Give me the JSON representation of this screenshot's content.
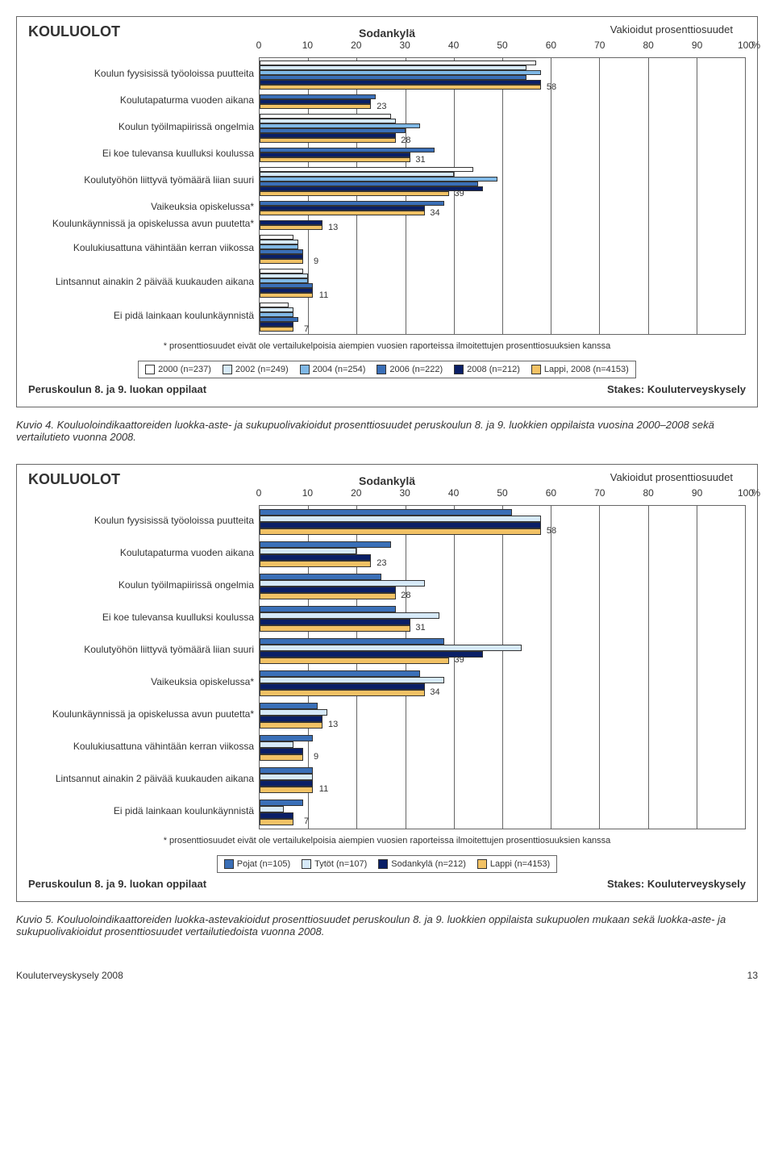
{
  "axis": {
    "ticks": [
      0,
      10,
      20,
      30,
      40,
      50,
      60,
      70,
      80,
      90,
      100
    ],
    "pct_label": "%"
  },
  "chart1": {
    "title": "KOULUOLOT",
    "subtitle_right": "Vakioidut prosenttiosuudet",
    "subtitle_center": "Sodankylä",
    "categories": [
      {
        "label": "Koulun fyysisissä työoloissa puutteita",
        "values": [
          57,
          55,
          58,
          55,
          58,
          58
        ],
        "end_label": "58"
      },
      {
        "label": "Koulutapaturma vuoden aikana",
        "values": [
          null,
          null,
          null,
          24,
          23,
          23
        ],
        "end_label": "23"
      },
      {
        "label": "Koulun työilmapiirissä ongelmia",
        "values": [
          27,
          28,
          33,
          30,
          28,
          28
        ],
        "end_label": "28"
      },
      {
        "label": "Ei koe tulevansa kuulluksi koulussa",
        "values": [
          null,
          null,
          null,
          36,
          31,
          31
        ],
        "end_label": "31"
      },
      {
        "label": "Koulutyöhön liittyvä työmäärä liian suuri",
        "values": [
          44,
          40,
          49,
          45,
          46,
          39
        ],
        "end_label": "39"
      },
      {
        "label": "Vaikeuksia opiskelussa*",
        "values": [
          null,
          null,
          null,
          38,
          34,
          34
        ],
        "end_label": "34"
      },
      {
        "label": "Koulunkäynnissä ja opiskelussa avun puutetta*",
        "values": [
          null,
          null,
          null,
          null,
          13,
          13
        ],
        "end_label": "13"
      },
      {
        "label": "Koulukiusattuna vähintään kerran viikossa",
        "values": [
          7,
          8,
          8,
          9,
          9,
          9
        ],
        "end_label": "9"
      },
      {
        "label": "Lintsannut ainakin 2 päivää kuukauden aikana",
        "values": [
          9,
          10,
          10,
          11,
          11,
          11
        ],
        "end_label": "11"
      },
      {
        "label": "Ei pidä lainkaan koulunkäynnistä",
        "values": [
          6,
          7,
          7,
          8,
          7,
          7
        ],
        "end_label": "7"
      }
    ],
    "series_colors": [
      "#ffffff",
      "#d6e9f8",
      "#7fb8e6",
      "#3a6fb7",
      "#0a1f66",
      "#f2c265"
    ],
    "legend": [
      {
        "label": "2000 (n=237)",
        "color": "#ffffff"
      },
      {
        "label": "2002 (n=249)",
        "color": "#d6e9f8"
      },
      {
        "label": "2004 (n=254)",
        "color": "#7fb8e6"
      },
      {
        "label": "2006 (n=222)",
        "color": "#3a6fb7"
      },
      {
        "label": "2008 (n=212)",
        "color": "#0a1f66"
      },
      {
        "label": "Lappi, 2008 (n=4153)",
        "color": "#f2c265"
      }
    ],
    "footnote": "* prosenttiosuudet eivät ole vertailukelpoisia aiempien vuosien raporteissa ilmoitettujen prosenttiosuuksien kanssa",
    "bottom_left": "Peruskoulun 8. ja 9. luokan oppilaat",
    "bottom_right": "Stakes: Kouluterveyskysely"
  },
  "caption1": "Kuvio 4. Kouluoloindikaattoreiden luokka-aste- ja sukupuolivakioidut prosenttiosuudet peruskoulun 8. ja 9. luokkien oppilaista vuosina 2000–2008 sekä vertailutieto vuonna 2008.",
  "chart2": {
    "title": "KOULUOLOT",
    "subtitle_right": "Vakioidut prosenttiosuudet",
    "subtitle_center": "Sodankylä",
    "categories": [
      {
        "label": "Koulun fyysisissä työoloissa puutteita",
        "values": [
          52,
          58,
          58,
          58
        ],
        "end_label": "58"
      },
      {
        "label": "Koulutapaturma vuoden aikana",
        "values": [
          27,
          20,
          23,
          23
        ],
        "end_label": "23"
      },
      {
        "label": "Koulun työilmapiirissä ongelmia",
        "values": [
          25,
          34,
          28,
          28
        ],
        "end_label": "28"
      },
      {
        "label": "Ei koe tulevansa kuulluksi koulussa",
        "values": [
          28,
          37,
          31,
          31
        ],
        "end_label": "31"
      },
      {
        "label": "Koulutyöhön liittyvä työmäärä liian suuri",
        "values": [
          38,
          54,
          46,
          39
        ],
        "end_label": "39"
      },
      {
        "label": "Vaikeuksia opiskelussa*",
        "values": [
          33,
          38,
          34,
          34
        ],
        "end_label": "34"
      },
      {
        "label": "Koulunkäynnissä ja opiskelussa avun puutetta*",
        "values": [
          12,
          14,
          13,
          13
        ],
        "end_label": "13"
      },
      {
        "label": "Koulukiusattuna vähintään kerran viikossa",
        "values": [
          11,
          7,
          9,
          9
        ],
        "end_label": "9"
      },
      {
        "label": "Lintsannut ainakin 2 päivää kuukauden aikana",
        "values": [
          11,
          11,
          11,
          11
        ],
        "end_label": "11"
      },
      {
        "label": "Ei pidä lainkaan koulunkäynnistä",
        "values": [
          9,
          5,
          7,
          7
        ],
        "end_label": "7"
      }
    ],
    "series_colors": [
      "#3a6fb7",
      "#d6e9f8",
      "#0a1f66",
      "#f2c265"
    ],
    "legend": [
      {
        "label": "Pojat (n=105)",
        "color": "#3a6fb7"
      },
      {
        "label": "Tytöt (n=107)",
        "color": "#d6e9f8"
      },
      {
        "label": "Sodankylä (n=212)",
        "color": "#0a1f66"
      },
      {
        "label": "Lappi (n=4153)",
        "color": "#f2c265"
      }
    ],
    "footnote": "* prosenttiosuudet eivät ole vertailukelpoisia aiempien vuosien raporteissa ilmoitettujen prosenttiosuuksien kanssa",
    "bottom_left": "Peruskoulun 8. ja 9. luokan oppilaat",
    "bottom_right": "Stakes: Kouluterveyskysely"
  },
  "caption2": "Kuvio 5. Kouluoloindikaattoreiden luokka-astevakioidut prosenttiosuudet peruskoulun 8. ja 9. luokkien oppilaista sukupuolen mukaan sekä luokka-aste- ja sukupuolivakioidut prosenttiosuudet vertailutiedoista vuonna 2008.",
  "page_foot_left": "Kouluterveyskysely 2008",
  "page_foot_right": "13"
}
